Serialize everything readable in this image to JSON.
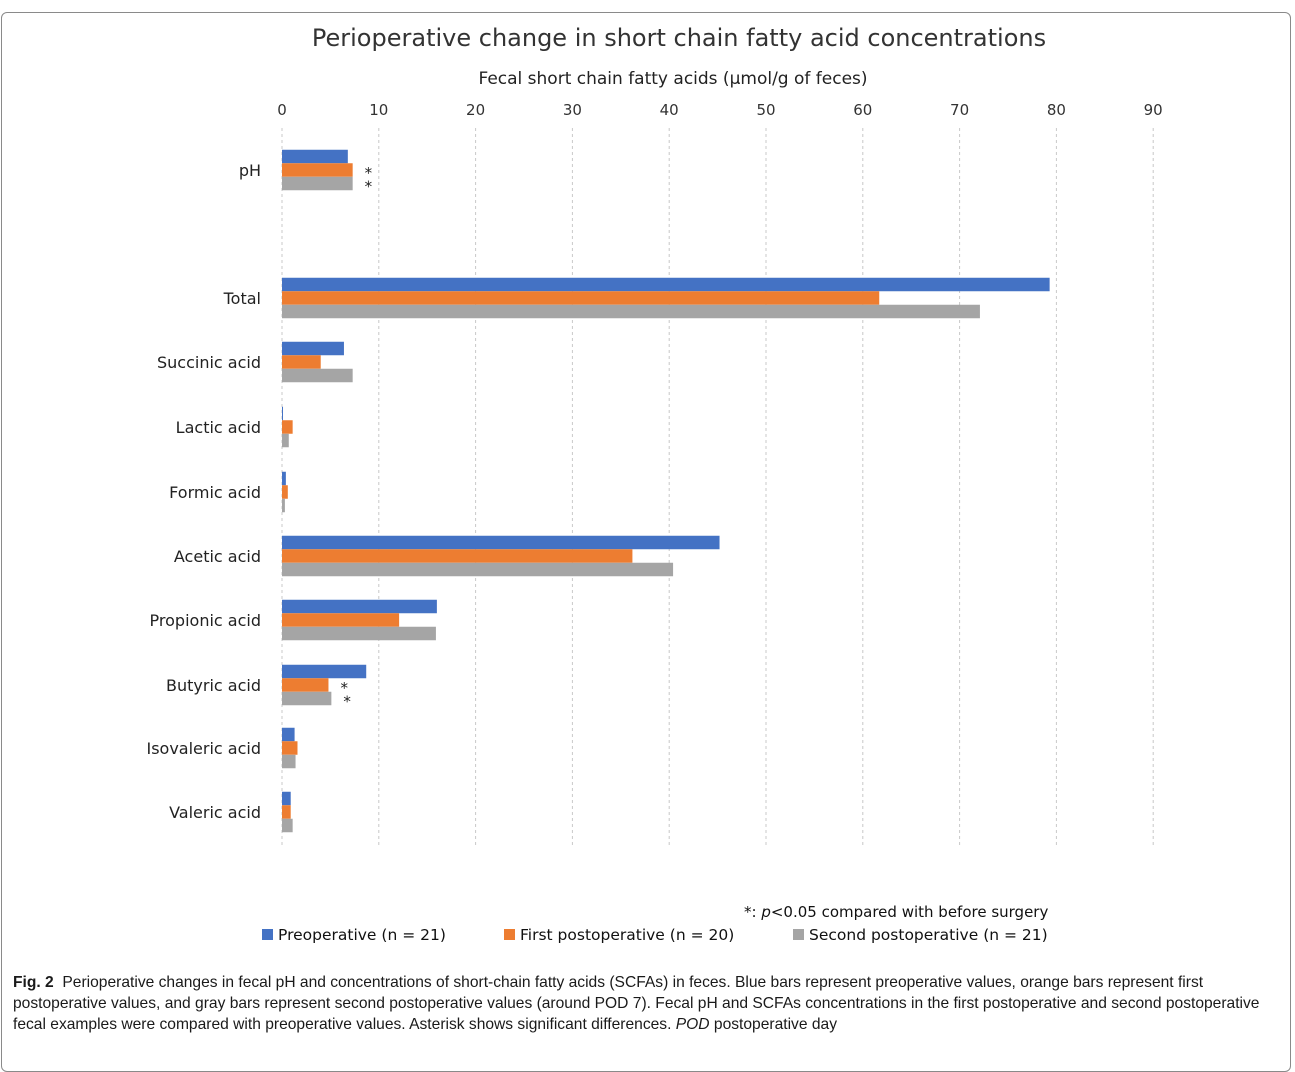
{
  "chart_data": {
    "type": "bar",
    "orientation": "horizontal",
    "title": "Perioperative change in short chain fatty acid concentrations",
    "xlabel": "Fecal short chain fatty acids (µmol/g of feces)",
    "xlim": [
      0,
      90
    ],
    "xticks": [
      0,
      10,
      20,
      30,
      40,
      50,
      60,
      70,
      80,
      90
    ],
    "grid": "vertical",
    "axis_position": "top",
    "legend_position": "bottom",
    "categories": [
      "pH",
      "Total",
      "Succinic acid",
      "Lactic acid",
      "Formic acid",
      "Acetic acid",
      "Propionic acid",
      "Butyric acid",
      "Isovaleric acid",
      "Valeric acid"
    ],
    "series": [
      {
        "name": "Preoperative (n = 21)",
        "color": "#4472c4",
        "values": [
          6.8,
          79.3,
          6.4,
          0.1,
          0.4,
          45.2,
          16.0,
          8.7,
          1.3,
          0.9
        ]
      },
      {
        "name": "First postoperative (n = 20)",
        "color": "#ed7d31",
        "values": [
          7.3,
          61.7,
          4.0,
          1.1,
          0.6,
          36.2,
          12.1,
          4.8,
          1.6,
          0.9
        ]
      },
      {
        "name": "Second postoperative (n = 21)",
        "color": "#a5a5a5",
        "values": [
          7.3,
          72.1,
          7.3,
          0.7,
          0.3,
          40.4,
          15.9,
          5.1,
          1.4,
          1.1
        ]
      }
    ],
    "significance_marks": [
      {
        "category": "pH",
        "series": "First postoperative (n = 20)",
        "mark": "*"
      },
      {
        "category": "pH",
        "series": "Second postoperative (n = 21)",
        "mark": "*"
      },
      {
        "category": "Butyric acid",
        "series": "First postoperative (n = 20)",
        "mark": "*"
      },
      {
        "category": "Butyric acid",
        "series": "Second postoperative (n = 21)",
        "mark": "*"
      }
    ],
    "significance_note": {
      "prefix": "*: ",
      "italic": "p",
      "suffix": "<0.05 compared with before surgery"
    }
  },
  "caption": {
    "label": "Fig. 2",
    "text_1": "Perioperative changes in fecal pH and concentrations of short-chain fatty acids (SCFAs) in feces. Blue bars represent preoperative values, orange bars represent first postoperative values, and gray bars represent second postoperative values (around POD 7). Fecal pH and SCFAs concentrations in the first postoperative and second postoperative fecal examples were compared with preoperative values. Asterisk shows significant differences. ",
    "abbr": "POD",
    "text_2": " postoperative day"
  }
}
